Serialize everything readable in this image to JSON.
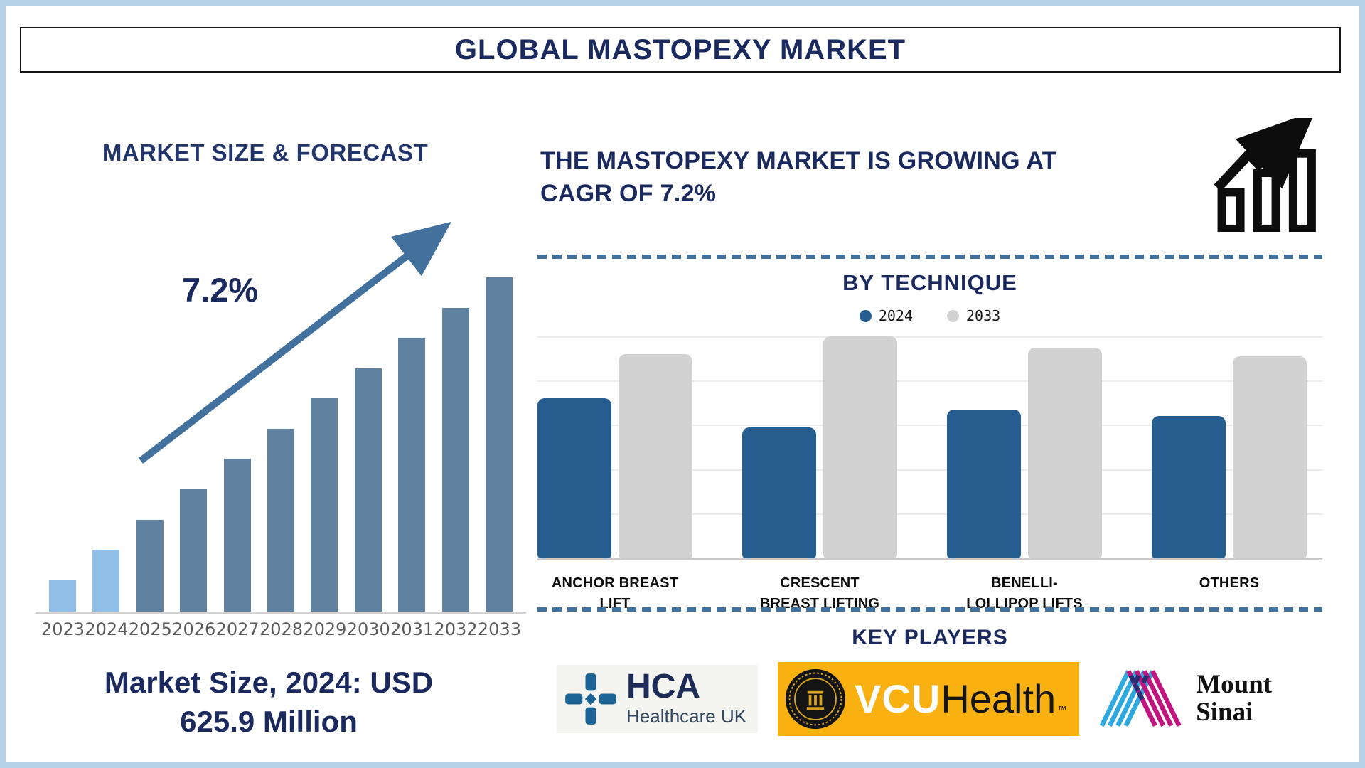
{
  "page": {
    "title": "GLOBAL MASTOPEXY MARKET"
  },
  "colors": {
    "navy_text": "#1b2a5e",
    "frame_border": "#b7d3ea",
    "arrow_blue": "#41719c",
    "dash_separator": "#41719c",
    "forecast_bar_light": "#92bfe8",
    "forecast_bar_dark": "#60819f",
    "technique_2024": "#255e8e",
    "technique_2033": "#d2d2d2",
    "vcu_yellow": "#f9b112",
    "hca_blue": "#1c6396",
    "sinai_cyan": "#2ea9e0",
    "sinai_magenta": "#c2147f",
    "sinai_navy": "#2a2d72"
  },
  "left_panel": {
    "title": "MARKET SIZE & FORECAST",
    "cagr_label": "7.2%",
    "caption_line1": "Market Size, 2024: USD",
    "caption_line2": "625.9 Million"
  },
  "right_panel": {
    "heading_line1": "THE MASTOPEXY MARKET IS GROWING AT",
    "heading_line2": "CAGR OF 7.2%",
    "by_technique_title": "BY TECHNIQUE",
    "key_players_title": "KEY PLAYERS",
    "players": [
      {
        "name": "HCA Healthcare UK",
        "text_main": "HCA",
        "text_sub": "Healthcare UK"
      },
      {
        "name": "VCU Health",
        "text_main": "VCU",
        "text_sub": "Health",
        "tm": "™"
      },
      {
        "name": "Mount Sinai",
        "line1": "Mount",
        "line2": "Sinai"
      }
    ]
  },
  "chart_data": [
    {
      "type": "bar",
      "title": "MARKET SIZE & FORECAST",
      "categories": [
        "2023",
        "2024",
        "2025",
        "2026",
        "2027",
        "2028",
        "2029",
        "2030",
        "2031",
        "2032",
        "2033"
      ],
      "values_relative": [
        44,
        87,
        129,
        172,
        215,
        257,
        300,
        342,
        385,
        427,
        470
      ],
      "unit": "relative bar height, px (no y-axis shown in figure)",
      "annotation": "7.2%",
      "known_point": "Market Size, 2024: USD 625.9 Million",
      "bar_color_light": "#92bfe8",
      "bar_color_dark": "#60819f",
      "light_color_years": [
        "2023",
        "2024"
      ],
      "grid": false,
      "legend_position": "none"
    },
    {
      "type": "bar",
      "title": "BY TECHNIQUE",
      "categories": [
        "ANCHOR BREAST LIFT",
        "CRESCENT BREAST LIFTING",
        "BENELLI-LOLLIPOP LIFTS",
        "OTHERS"
      ],
      "series": [
        {
          "name": "2024",
          "color": "#255e8e",
          "values": [
            72,
            59,
            67,
            64
          ]
        },
        {
          "name": "2033",
          "color": "#d2d2d2",
          "values": [
            92,
            100,
            95,
            91
          ]
        }
      ],
      "ylim": [
        0,
        100
      ],
      "unit": "relative height, % of plot area (no y-axis labels shown)",
      "grid": true,
      "legend_position": "top"
    }
  ]
}
